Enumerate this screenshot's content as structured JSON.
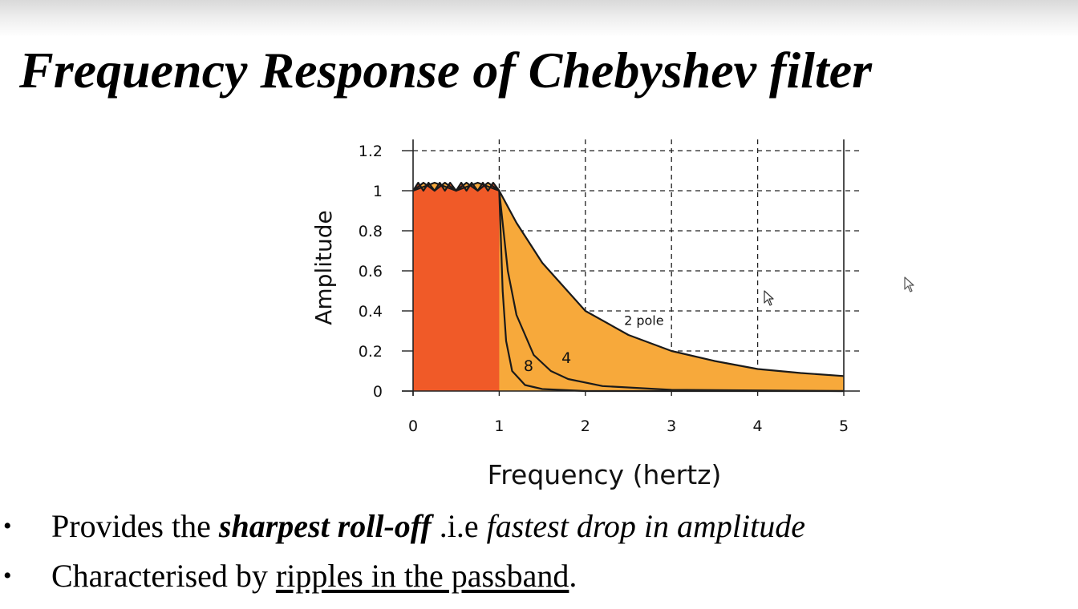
{
  "slide": {
    "title": "Frequency Response of Chebyshev filter",
    "bullets": [
      {
        "marker": "•",
        "parts": [
          {
            "text": "Provides the ",
            "style": "normal"
          },
          {
            "text": "sharpest roll-off",
            "style": "bold-italic"
          },
          {
            "text": " .i.e ",
            "style": "normal"
          },
          {
            "text": "fastest drop in amplitude",
            "style": "italic"
          }
        ]
      },
      {
        "marker": "•",
        "parts": [
          {
            "text": "Characterised by ",
            "style": "normal"
          },
          {
            "text": "ripples in the passband",
            "style": "underline"
          },
          {
            "text": ".",
            "style": "normal"
          }
        ]
      }
    ]
  },
  "chart_data": {
    "type": "area",
    "xlabel": "Frequency (hertz)",
    "ylabel": "Amplitude",
    "xlim": [
      0,
      5
    ],
    "ylim": [
      0,
      1.2
    ],
    "xticks": [
      0,
      1,
      2,
      3,
      4,
      5
    ],
    "yticks": [
      0,
      0.2,
      0.4,
      0.6,
      0.8,
      1,
      1.2
    ],
    "xtick_labels": [
      "0",
      "1",
      "2",
      "3",
      "4",
      "5"
    ],
    "ytick_labels": [
      "0",
      "0.2",
      "0.4",
      "0.6",
      "0.8",
      "1",
      "1.2"
    ],
    "grid": "dashed",
    "colors": {
      "passband": "#f05a28",
      "roll_off": "#f7a93b",
      "line": "#1a1a1a"
    },
    "series": [
      {
        "name": "2 pole",
        "points": [
          [
            0,
            1
          ],
          [
            0.25,
            1.04
          ],
          [
            0.5,
            1.0
          ],
          [
            0.75,
            1.04
          ],
          [
            1.0,
            1.0
          ],
          [
            1.2,
            0.84
          ],
          [
            1.5,
            0.64
          ],
          [
            2.0,
            0.4
          ],
          [
            2.5,
            0.28
          ],
          [
            3.0,
            0.2
          ],
          [
            3.5,
            0.15
          ],
          [
            4.0,
            0.11
          ],
          [
            4.5,
            0.09
          ],
          [
            5.0,
            0.075
          ]
        ]
      },
      {
        "name": "4",
        "points": [
          [
            0,
            1
          ],
          [
            0.12,
            1.04
          ],
          [
            0.25,
            1.0
          ],
          [
            0.37,
            1.04
          ],
          [
            0.5,
            1.0
          ],
          [
            0.62,
            1.04
          ],
          [
            0.75,
            1.0
          ],
          [
            0.87,
            1.04
          ],
          [
            1.0,
            1.0
          ],
          [
            1.1,
            0.6
          ],
          [
            1.2,
            0.38
          ],
          [
            1.4,
            0.18
          ],
          [
            1.6,
            0.1
          ],
          [
            1.8,
            0.06
          ],
          [
            2.2,
            0.025
          ],
          [
            3.0,
            0.006
          ],
          [
            5.0,
            0.0
          ]
        ]
      },
      {
        "name": "8",
        "points": [
          [
            0,
            1
          ],
          [
            0.06,
            1.04
          ],
          [
            0.12,
            1.0
          ],
          [
            0.18,
            1.04
          ],
          [
            0.25,
            1.0
          ],
          [
            0.31,
            1.04
          ],
          [
            0.37,
            1.0
          ],
          [
            0.43,
            1.04
          ],
          [
            0.5,
            1.0
          ],
          [
            0.56,
            1.04
          ],
          [
            0.62,
            1.0
          ],
          [
            0.68,
            1.04
          ],
          [
            0.75,
            1.0
          ],
          [
            0.81,
            1.04
          ],
          [
            0.87,
            1.0
          ],
          [
            0.93,
            1.04
          ],
          [
            1.0,
            1.0
          ],
          [
            1.04,
            0.5
          ],
          [
            1.08,
            0.25
          ],
          [
            1.15,
            0.1
          ],
          [
            1.3,
            0.03
          ],
          [
            1.5,
            0.01
          ],
          [
            2.0,
            0.0
          ],
          [
            5.0,
            0.0
          ]
        ]
      }
    ],
    "passband": {
      "x0": 0,
      "x1": 1,
      "level": 1
    },
    "series_labels": [
      {
        "series": "2 pole",
        "x": 2.68,
        "y": 0.33
      },
      {
        "series": "4",
        "x": 1.78,
        "y": 0.14
      },
      {
        "series": "8",
        "x": 1.34,
        "y": 0.1
      }
    ]
  },
  "cursors": [
    {
      "name": "mouse-pointer-icon-1",
      "x": 952,
      "y": 362
    },
    {
      "name": "mouse-pointer-icon-2",
      "x": 1127,
      "y": 345
    }
  ]
}
